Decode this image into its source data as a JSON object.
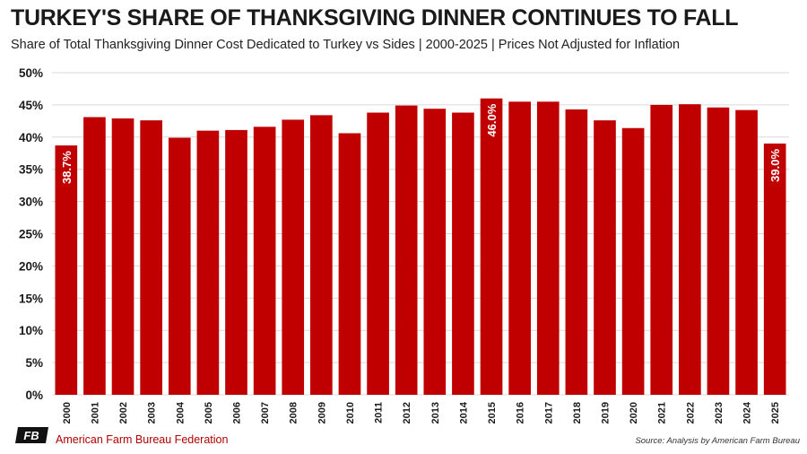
{
  "header": {
    "title": "TURKEY'S SHARE OF THANKSGIVING DINNER CONTINUES TO FALL",
    "subtitle": "Share of Total Thanksgiving Dinner Cost Dedicated to Turkey vs Sides | 2000-2025 | Prices Not Adjusted for Inflation"
  },
  "footer": {
    "org_name": "American Farm Bureau Federation",
    "logo_text": "FB",
    "source": "Source: Analysis by American Farm Bureau"
  },
  "colors": {
    "bar": "#c00000",
    "grid": "#d9d9d9",
    "label": "#ffffff",
    "org": "#b00000"
  },
  "chart_data": {
    "type": "bar",
    "title": "TURKEY'S SHARE OF THANKSGIVING DINNER CONTINUES TO FALL",
    "xlabel": "",
    "ylabel": "",
    "ylim": [
      0,
      50
    ],
    "yticks": [
      "0%",
      "5%",
      "10%",
      "15%",
      "20%",
      "25%",
      "30%",
      "35%",
      "40%",
      "45%",
      "50%"
    ],
    "grid": true,
    "categories": [
      "2000",
      "2001",
      "2002",
      "2003",
      "2004",
      "2005",
      "2006",
      "2007",
      "2008",
      "2009",
      "2010",
      "2011",
      "2012",
      "2013",
      "2014",
      "2015",
      "2016",
      "2017",
      "2018",
      "2019",
      "2020",
      "2021",
      "2022",
      "2023",
      "2024",
      "2025"
    ],
    "values": [
      38.7,
      43.1,
      42.9,
      42.6,
      39.9,
      41.0,
      41.1,
      41.6,
      42.7,
      43.4,
      40.6,
      43.8,
      44.9,
      44.4,
      43.8,
      46.0,
      45.5,
      45.5,
      44.3,
      42.6,
      41.4,
      45.0,
      45.1,
      44.6,
      44.2,
      39.0
    ],
    "data_labels": [
      {
        "category": "2000",
        "text": "38.7%"
      },
      {
        "category": "2015",
        "text": "46.0%"
      },
      {
        "category": "2025",
        "text": "39.0%"
      }
    ]
  }
}
